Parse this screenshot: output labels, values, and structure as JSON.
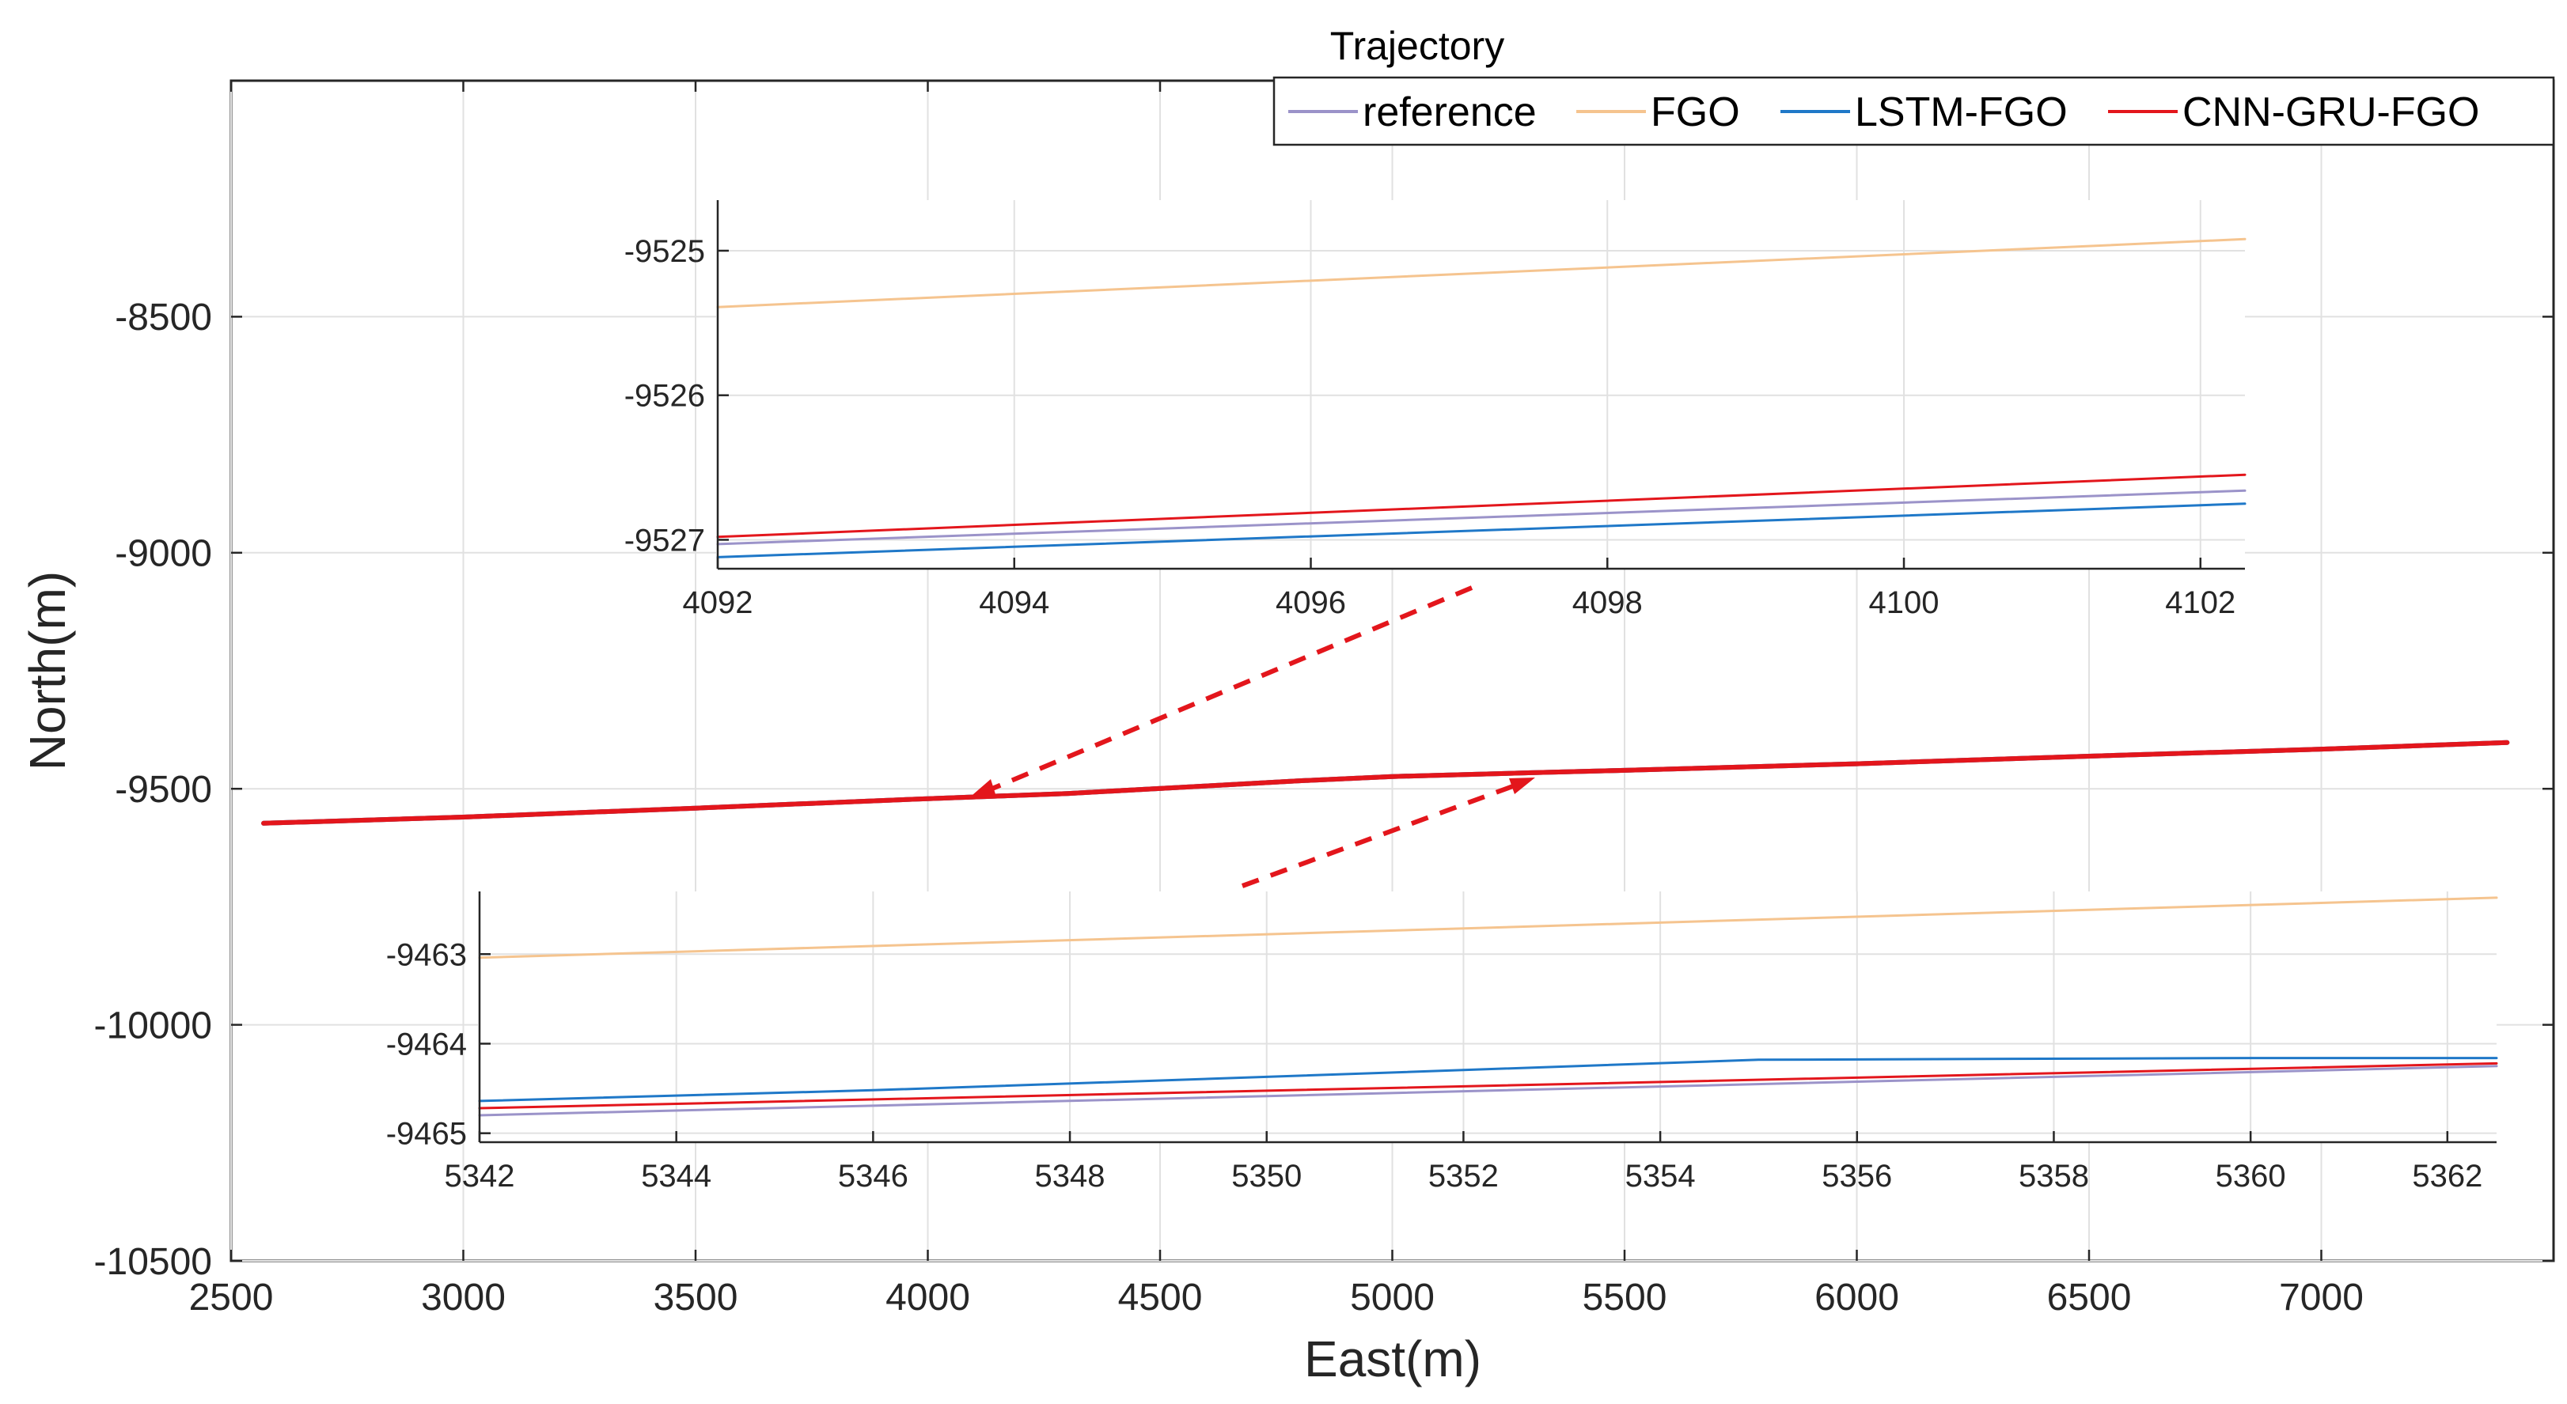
{
  "chart_data": [
    {
      "id": "main",
      "type": "line",
      "title": "",
      "xlabel": "East(m)",
      "ylabel": "North(m)",
      "xlim": [
        2500,
        7500
      ],
      "ylim": [
        -10500,
        -8000
      ],
      "xticks": [
        2500,
        3000,
        3500,
        4000,
        4500,
        5000,
        5500,
        6000,
        6500,
        7000
      ],
      "yticks": [
        -10500,
        -10000,
        -9500,
        -9000,
        -8500
      ],
      "grid": true,
      "series": [
        {
          "name": "reference",
          "color": "#9b93c9",
          "x": [
            2570,
            3000,
            3500,
            4000,
            4300,
            4600,
            4800,
            5000,
            5300,
            5500,
            6000,
            6500,
            7000,
            7400
          ],
          "y": [
            -9573,
            -9560,
            -9541,
            -9521,
            -9510,
            -9494,
            -9483,
            -9474,
            -9466,
            -9461,
            -9447,
            -9431,
            -9416,
            -9402
          ]
        },
        {
          "name": "FGO",
          "color": "#f5c48f",
          "x": [
            2570,
            3000,
            3500,
            4000,
            4300,
            4600,
            4800,
            5000,
            5300,
            5500,
            6000,
            6500,
            7000,
            7400
          ],
          "y": [
            -9573,
            -9560,
            -9541,
            -9521,
            -9510,
            -9494,
            -9483,
            -9474,
            -9466,
            -9461,
            -9447,
            -9431,
            -9416,
            -9402
          ]
        },
        {
          "name": "LSTM-FGO",
          "color": "#1f78c8",
          "x": [
            2570,
            3000,
            3500,
            4000,
            4300,
            4600,
            4800,
            5000,
            5300,
            5500,
            6000,
            6500,
            7000,
            7400
          ],
          "y": [
            -9573,
            -9560,
            -9541,
            -9521,
            -9510,
            -9494,
            -9483,
            -9474,
            -9466,
            -9461,
            -9447,
            -9431,
            -9416,
            -9402
          ]
        },
        {
          "name": "CNN-GRU-FGO",
          "color": "#e3161c",
          "x": [
            2570,
            3000,
            3500,
            4000,
            4300,
            4600,
            4800,
            5000,
            5300,
            5500,
            6000,
            6500,
            7000,
            7400
          ],
          "y": [
            -9573,
            -9560,
            -9541,
            -9521,
            -9510,
            -9494,
            -9483,
            -9474,
            -9466,
            -9461,
            -9447,
            -9431,
            -9416,
            -9402
          ]
        }
      ]
    },
    {
      "id": "inset_top",
      "type": "line",
      "xlim": [
        4092,
        4102.3
      ],
      "ylim": [
        -9527.2,
        -9524.65
      ],
      "xticks": [
        4092,
        4094,
        4096,
        4098,
        4100,
        4102
      ],
      "yticks": [
        -9527,
        -9526,
        -9525
      ],
      "grid": true,
      "series": [
        {
          "name": "reference",
          "color": "#9b93c9",
          "x": [
            4092,
            4102.3
          ],
          "y": [
            -9527.03,
            -9526.66
          ]
        },
        {
          "name": "FGO",
          "color": "#f5c48f",
          "x": [
            4092,
            4102.3
          ],
          "y": [
            -9525.39,
            -9524.92
          ]
        },
        {
          "name": "LSTM-FGO",
          "color": "#1f78c8",
          "x": [
            4092,
            4102.3
          ],
          "y": [
            -9527.12,
            -9526.75
          ]
        },
        {
          "name": "CNN-GRU-FGO",
          "color": "#e3161c",
          "x": [
            4092,
            4102.3
          ],
          "y": [
            -9526.98,
            -9526.55
          ]
        }
      ]
    },
    {
      "id": "inset_bottom",
      "type": "line",
      "xlim": [
        5342,
        5362.5
      ],
      "ylim": [
        -9465.1,
        -9462.3
      ],
      "xticks": [
        5342,
        5344,
        5346,
        5348,
        5350,
        5352,
        5354,
        5356,
        5358,
        5360,
        5362
      ],
      "yticks": [
        -9465,
        -9464,
        -9463
      ],
      "grid": true,
      "series": [
        {
          "name": "reference",
          "color": "#9b93c9",
          "x": [
            5342,
            5362.5
          ],
          "y": [
            -9464.8,
            -9464.25
          ]
        },
        {
          "name": "FGO",
          "color": "#f5c48f",
          "x": [
            5342,
            5362.5
          ],
          "y": [
            -9463.04,
            -9462.37
          ]
        },
        {
          "name": "LSTM-FGO",
          "color": "#1f78c8",
          "x": [
            5342,
            5346,
            5350,
            5355,
            5360,
            5362.5
          ],
          "y": [
            -9464.64,
            -9464.52,
            -9464.37,
            -9464.18,
            -9464.16,
            -9464.16
          ]
        },
        {
          "name": "CNN-GRU-FGO",
          "color": "#e3161c",
          "x": [
            5342,
            5362.5
          ],
          "y": [
            -9464.72,
            -9464.22
          ]
        }
      ]
    }
  ],
  "legend": {
    "title": "Trajectory",
    "items": [
      {
        "label": "reference",
        "color": "#9b93c9"
      },
      {
        "label": "FGO",
        "color": "#f5c48f"
      },
      {
        "label": "LSTM-FGO",
        "color": "#1f78c8"
      },
      {
        "label": "CNN-GRU-FGO",
        "color": "#e3161c"
      }
    ]
  },
  "annotations": {
    "arrow_color": "#e3161c"
  }
}
